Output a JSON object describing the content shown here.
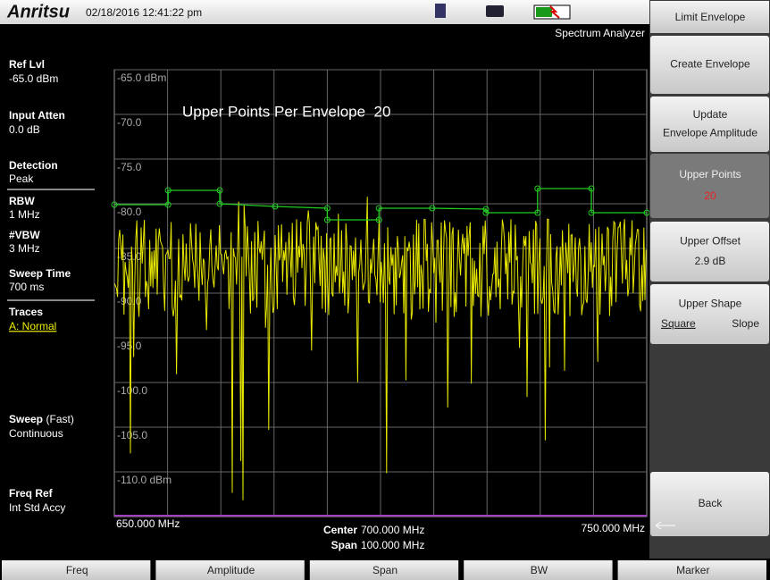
{
  "header": {
    "brand": "Anritsu",
    "datetime": "02/18/2016 12:41:22 pm",
    "mode": "Spectrum Analyzer"
  },
  "left_panel": [
    {
      "label": "Ref Lvl",
      "value": "-65.0 dBm"
    },
    {
      "label": "Input Atten",
      "value": "0.0 dB"
    },
    {
      "label": "Detection",
      "value": "Peak"
    },
    {
      "label": "RBW",
      "value": "1 MHz"
    },
    {
      "label": "#VBW",
      "value": "3 MHz"
    },
    {
      "label": "Sweep Time",
      "value": "700 ms"
    },
    {
      "label": "Traces",
      "value": "A: Normal"
    },
    {
      "label": "Sweep",
      "suffix": "(Fast)",
      "value": "Continuous"
    },
    {
      "label": "Freq Ref",
      "value": "Int Std Accy"
    }
  ],
  "plot": {
    "annotation": "Upper Points Per Envelope  20",
    "ylim": [
      -115,
      -65
    ],
    "xlim": [
      650,
      750
    ],
    "yticks": [
      {
        "value": -65,
        "label": "-65.0 dBm"
      },
      {
        "value": -70,
        "label": "-70.0"
      },
      {
        "value": -75,
        "label": "-75.0"
      },
      {
        "value": -80,
        "label": "-80.0"
      },
      {
        "value": -85,
        "label": "-85.0"
      },
      {
        "value": -90,
        "label": "-90.0"
      },
      {
        "value": -95,
        "label": "-95.0"
      },
      {
        "value": -100,
        "label": "-100.0"
      },
      {
        "value": -105,
        "label": "-105.0"
      },
      {
        "value": -110,
        "label": "-110.0 dBm"
      }
    ],
    "envelope": {
      "x": [
        650,
        660.1,
        660.1,
        669.8,
        669.8,
        680.2,
        690,
        690,
        699.7,
        699.7,
        709.7,
        719.8,
        719.8,
        729.5,
        729.5,
        739.6,
        739.6,
        750
      ],
      "y": [
        -80.1,
        -80.1,
        -78.5,
        -78.5,
        -80,
        -80.3,
        -80.5,
        -81.8,
        -81.8,
        -80.5,
        -80.5,
        -80.6,
        -81,
        -81,
        -78.3,
        -78.3,
        -81,
        -81
      ]
    },
    "start": "650.000 MHz",
    "stop": "750.000 MHz",
    "center_label": "Center",
    "center": "700.000 MHz",
    "span_label": "Span",
    "span": "100.000 MHz"
  },
  "softkeys": {
    "title": "Limit Envelope",
    "keys": [
      {
        "lines": [
          "Create Envelope"
        ]
      },
      {
        "lines": [
          "Update",
          "Envelope Amplitude"
        ]
      },
      {
        "lines": [
          "Upper Points"
        ],
        "value": "20"
      },
      {
        "lines": [
          "Upper Offset"
        ],
        "value": "2.9 dB"
      },
      {
        "lines": [
          "Upper Shape"
        ],
        "options": [
          "Square",
          "Slope"
        ]
      },
      {
        "lines": [
          "Back"
        ]
      }
    ]
  },
  "tabs": [
    "Freq",
    "Amplitude",
    "Span",
    "BW",
    "Marker"
  ]
}
